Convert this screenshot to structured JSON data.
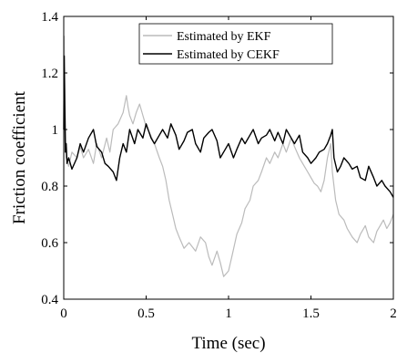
{
  "chart_data": {
    "type": "line",
    "title": "",
    "xlabel": "Time (sec)",
    "ylabel": "Friction coefficient",
    "xlim": [
      0,
      2
    ],
    "ylim": [
      0.4,
      1.4
    ],
    "xticks": [
      0,
      0.5,
      1,
      1.5,
      2
    ],
    "xtick_labels": [
      "0",
      "0.5",
      "1",
      "1.5",
      "2"
    ],
    "yticks": [
      0.4,
      0.6,
      0.8,
      1.0,
      1.2,
      1.4
    ],
    "ytick_labels": [
      "0.4",
      "0.6",
      "0.8",
      "1",
      "1.2",
      "1.4"
    ],
    "grid": false,
    "box": true,
    "legend_position": "top-center",
    "series": [
      {
        "name": "Estimated by EKF",
        "color": "#bbbbbb",
        "x": [
          0,
          0.003,
          0.008,
          0.015,
          0.03,
          0.05,
          0.08,
          0.1,
          0.12,
          0.15,
          0.18,
          0.2,
          0.23,
          0.26,
          0.28,
          0.3,
          0.33,
          0.36,
          0.38,
          0.39,
          0.4,
          0.42,
          0.44,
          0.46,
          0.48,
          0.5,
          0.52,
          0.55,
          0.58,
          0.6,
          0.62,
          0.64,
          0.66,
          0.68,
          0.7,
          0.73,
          0.76,
          0.8,
          0.83,
          0.86,
          0.88,
          0.9,
          0.93,
          0.95,
          0.97,
          1.0,
          1.02,
          1.05,
          1.08,
          1.1,
          1.13,
          1.15,
          1.18,
          1.2,
          1.23,
          1.25,
          1.28,
          1.3,
          1.33,
          1.35,
          1.38,
          1.4,
          1.43,
          1.45,
          1.48,
          1.5,
          1.52,
          1.54,
          1.56,
          1.58,
          1.6,
          1.62,
          1.63,
          1.65,
          1.67,
          1.7,
          1.72,
          1.75,
          1.78,
          1.8,
          1.83,
          1.85,
          1.88,
          1.9,
          1.92,
          1.94,
          1.96,
          1.98,
          2.0
        ],
        "y": [
          0.75,
          1.33,
          1.1,
          0.9,
          0.87,
          0.92,
          0.9,
          0.94,
          0.9,
          0.93,
          0.88,
          0.95,
          0.9,
          0.97,
          0.92,
          1.0,
          1.02,
          1.06,
          1.12,
          1.08,
          1.05,
          1.02,
          1.06,
          1.09,
          1.05,
          1.01,
          0.99,
          0.95,
          0.9,
          0.87,
          0.82,
          0.75,
          0.7,
          0.65,
          0.62,
          0.58,
          0.6,
          0.57,
          0.62,
          0.6,
          0.55,
          0.52,
          0.57,
          0.53,
          0.48,
          0.5,
          0.55,
          0.63,
          0.67,
          0.72,
          0.75,
          0.8,
          0.82,
          0.85,
          0.9,
          0.88,
          0.92,
          0.9,
          0.95,
          0.92,
          0.97,
          0.94,
          0.9,
          0.88,
          0.85,
          0.83,
          0.81,
          0.8,
          0.78,
          0.82,
          0.9,
          0.95,
          0.85,
          0.75,
          0.7,
          0.68,
          0.65,
          0.62,
          0.6,
          0.63,
          0.66,
          0.62,
          0.6,
          0.64,
          0.66,
          0.68,
          0.65,
          0.67,
          0.7
        ]
      },
      {
        "name": "Estimated by CEKF",
        "color": "#000000",
        "x": [
          0,
          0.003,
          0.006,
          0.01,
          0.015,
          0.02,
          0.03,
          0.05,
          0.08,
          0.1,
          0.12,
          0.15,
          0.18,
          0.2,
          0.23,
          0.25,
          0.27,
          0.3,
          0.32,
          0.34,
          0.36,
          0.38,
          0.4,
          0.43,
          0.45,
          0.48,
          0.5,
          0.53,
          0.55,
          0.58,
          0.6,
          0.63,
          0.65,
          0.68,
          0.7,
          0.73,
          0.75,
          0.78,
          0.8,
          0.83,
          0.85,
          0.88,
          0.9,
          0.93,
          0.95,
          0.98,
          1.0,
          1.03,
          1.05,
          1.08,
          1.1,
          1.13,
          1.15,
          1.18,
          1.2,
          1.23,
          1.25,
          1.28,
          1.3,
          1.33,
          1.35,
          1.38,
          1.4,
          1.43,
          1.45,
          1.48,
          1.5,
          1.53,
          1.55,
          1.58,
          1.6,
          1.62,
          1.63,
          1.64,
          1.66,
          1.68,
          1.7,
          1.73,
          1.75,
          1.78,
          1.8,
          1.83,
          1.85,
          1.88,
          1.9,
          1.93,
          1.95,
          1.98,
          2.0
        ],
        "y": [
          1.0,
          1.26,
          1.1,
          0.92,
          0.95,
          0.88,
          0.9,
          0.86,
          0.9,
          0.95,
          0.92,
          0.97,
          1.0,
          0.94,
          0.92,
          0.88,
          0.87,
          0.85,
          0.82,
          0.9,
          0.95,
          0.92,
          1.0,
          0.95,
          1.0,
          0.97,
          1.02,
          0.97,
          0.95,
          0.98,
          1.0,
          0.97,
          1.02,
          0.98,
          0.93,
          0.96,
          0.99,
          1.0,
          0.95,
          0.92,
          0.97,
          0.99,
          1.0,
          0.96,
          0.9,
          0.93,
          0.95,
          0.9,
          0.93,
          0.97,
          0.95,
          0.98,
          1.0,
          0.95,
          0.97,
          0.98,
          1.0,
          0.96,
          0.99,
          0.95,
          1.0,
          0.97,
          0.95,
          0.98,
          0.92,
          0.9,
          0.88,
          0.9,
          0.92,
          0.93,
          0.95,
          0.98,
          1.0,
          0.9,
          0.85,
          0.87,
          0.9,
          0.88,
          0.86,
          0.87,
          0.83,
          0.82,
          0.87,
          0.83,
          0.8,
          0.82,
          0.8,
          0.78,
          0.76
        ]
      }
    ]
  }
}
